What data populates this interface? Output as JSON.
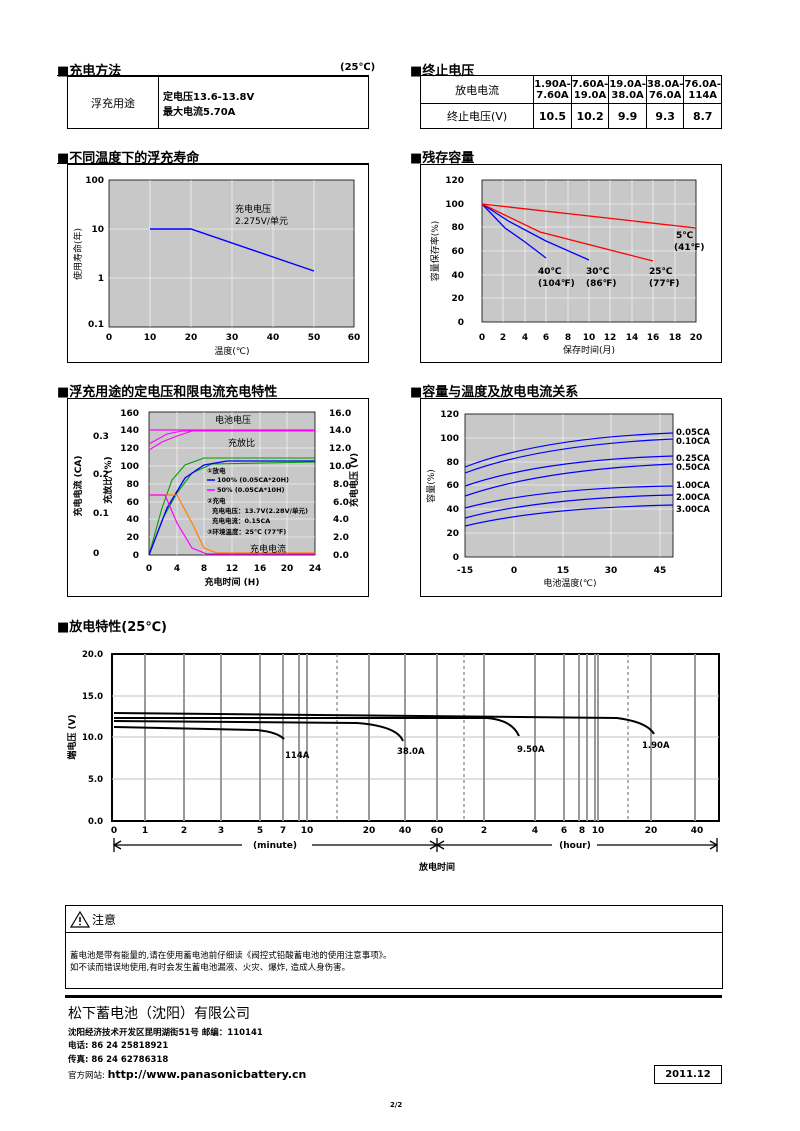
{
  "charge_method": {
    "title": "■充电方法",
    "temp": "(25℃)",
    "row_label": "浮充用途",
    "line1": "定电压13.6-13.8V",
    "line2": "最大电流5.70A"
  },
  "cutoff": {
    "title": "■终止电压",
    "row1_label": "放电电流",
    "row2_label": "终止电压(V)",
    "currents": [
      [
        "1.90A-",
        "7.60A"
      ],
      [
        "7.60A-",
        "19.0A"
      ],
      [
        "19.0A-",
        "38.0A"
      ],
      [
        "38.0A-",
        "76.0A"
      ],
      [
        "76.0A-",
        "114A"
      ]
    ],
    "voltages": [
      "10.5",
      "10.2",
      "9.9",
      "9.3",
      "8.7"
    ]
  },
  "float_life": {
    "title": "■不同温度下的浮充寿命",
    "ylabel": "使用寿命(年)",
    "xlabel": "温度(℃)",
    "annotation1": "充电电压",
    "annotation2": "2.275V/单元",
    "yticks": [
      "100",
      "10",
      "1",
      "0.1"
    ],
    "xticks": [
      "0",
      "10",
      "20",
      "30",
      "40",
      "50",
      "60"
    ]
  },
  "retention": {
    "title": "■残存容量",
    "ylabel": "容量保存率(%)",
    "xlabel": "保存时间(月)",
    "yticks": [
      "120",
      "100",
      "80",
      "60",
      "40",
      "20",
      "0"
    ],
    "xticks": [
      "0",
      "2",
      "4",
      "6",
      "8",
      "10",
      "12",
      "14",
      "16",
      "18",
      "20"
    ],
    "labels": [
      {
        "l1": "40℃",
        "l2": "(104℉)"
      },
      {
        "l1": "30℃",
        "l2": "(86℉)"
      },
      {
        "l1": "25℃",
        "l2": "(77℉)"
      },
      {
        "l1": "5℃",
        "l2": "(41℉)"
      }
    ]
  },
  "charge_char": {
    "title": "■浮充用途的定电压和限电流充电特性",
    "left_axis": "充电电流 (CA)",
    "mid_axis": "充放比 (%)",
    "right_axis": "充电电压 (V)",
    "xlabel": "充电时间 (H)",
    "label_voltage": "电池电压",
    "label_ratio": "充放比",
    "label_current": "充电电流",
    "legend": [
      "①放电",
      "100% (0.05CA*20H)",
      "50% (0.05CA*10H)",
      "②充电",
      "充电电压：13.7V(2.28V/单元)",
      "充电电流：0.15CA",
      "③环境温度：25℃ (77℉)"
    ],
    "left_ticks": [
      "0.3",
      "0.2",
      "0.1",
      "0"
    ],
    "mid_ticks": [
      "160",
      "140",
      "120",
      "100",
      "80",
      "60",
      "40",
      "20",
      "0"
    ],
    "right_ticks": [
      "16.0",
      "14.0",
      "12.0",
      "10.0",
      "8.0",
      "6.0",
      "4.0",
      "2.0",
      "0.0"
    ],
    "xticks": [
      "0",
      "4",
      "8",
      "12",
      "16",
      "20",
      "24"
    ]
  },
  "capacity_temp": {
    "title": "■容量与温度及放电电流关系",
    "ylabel": "容量(%)",
    "xlabel": "电池温度(℃)",
    "yticks": [
      "120",
      "100",
      "80",
      "60",
      "40",
      "20",
      "0"
    ],
    "xticks": [
      "-15",
      "0",
      "15",
      "30",
      "45"
    ],
    "series": [
      "0.05CA",
      "0.10CA",
      "0.25CA",
      "0.50CA",
      "1.00CA",
      "2.00CA",
      "3.00CA"
    ]
  },
  "discharge": {
    "title": "■放电特性(25℃)",
    "ylabel": "端电压 (V)",
    "xlabel": "放电时间",
    "yticks": [
      "20.0",
      "15.0",
      "10.0",
      "5.0",
      "0.0"
    ],
    "min_ticks": [
      "0",
      "1",
      "2",
      "3",
      "5",
      "7",
      "10",
      "20",
      "40",
      "60"
    ],
    "hour_ticks": [
      "2",
      "4",
      "6",
      "8",
      "10",
      "20",
      "40"
    ],
    "minute_label": "(minute)",
    "hour_label": "(hour)",
    "series": [
      "114A",
      "38.0A",
      "9.50A",
      "1.90A"
    ]
  },
  "notice": {
    "title": "注意",
    "line1": "蓄电池是带有能量的,请在使用蓄电池前仔细读《阀控式铅酸蓄电池的使用注意事项》。",
    "line2": "如不读而错误地使用,有时会发生蓄电池漏液、火灾、爆炸, 造成人身伤害。"
  },
  "company": {
    "name": "松下蓄电池（沈阳）有限公司",
    "address": "沈阳经济技术开发区昆明湖街51号 邮编：110141",
    "phone": "电话: 86 24 25818921",
    "fax": "传真: 86 24 62786318",
    "web_label": "官方网站: ",
    "web": "http://www.panasonicbattery.cn",
    "date": "2011.12",
    "page": "2/2"
  },
  "colors": {
    "plot_bg": "#c8c8c8",
    "blue": "#0000ff",
    "red": "#ff0000",
    "green": "#00a000",
    "magenta": "#ff00ff",
    "orange": "#ff8000"
  }
}
